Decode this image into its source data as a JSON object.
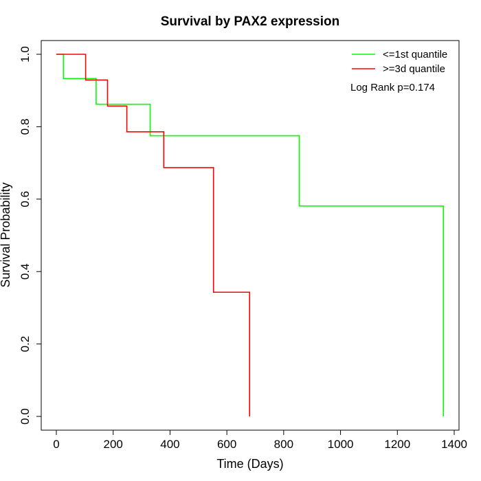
{
  "chart_data": {
    "type": "line",
    "subtype": "kaplan-meier step",
    "title": "Survival by PAX2 expression",
    "xlabel": "Time (Days)",
    "ylabel": "Survival Probability",
    "xlim": [
      0,
      1400
    ],
    "ylim": [
      0,
      1.0
    ],
    "x_ticks": [
      0,
      200,
      400,
      600,
      800,
      1000,
      1200,
      1400
    ],
    "x_tick_labels": [
      "0",
      "200",
      "400",
      "600",
      "800",
      "1000",
      "1200",
      "1400"
    ],
    "y_ticks": [
      0.0,
      0.2,
      0.4,
      0.6,
      0.8,
      1.0
    ],
    "y_tick_labels": [
      "0.0",
      "0.2",
      "0.4",
      "0.6",
      "0.8",
      "1.0"
    ],
    "grid": false,
    "legend_position": "top-right",
    "annotation": "Log Rank p=0.174",
    "series": [
      {
        "name": "<=1st quantile",
        "color": "#00ff00",
        "x": [
          0,
          25,
          140,
          330,
          855,
          1362
        ],
        "y": [
          1.0,
          0.933,
          0.862,
          0.775,
          0.581,
          0.0
        ]
      },
      {
        "name": ">=3d quantile",
        "color": "#ff0000",
        "x": [
          0,
          103,
          180,
          248,
          378,
          553,
          680
        ],
        "y": [
          1.0,
          0.929,
          0.857,
          0.786,
          0.687,
          0.343,
          0.0
        ]
      }
    ]
  }
}
